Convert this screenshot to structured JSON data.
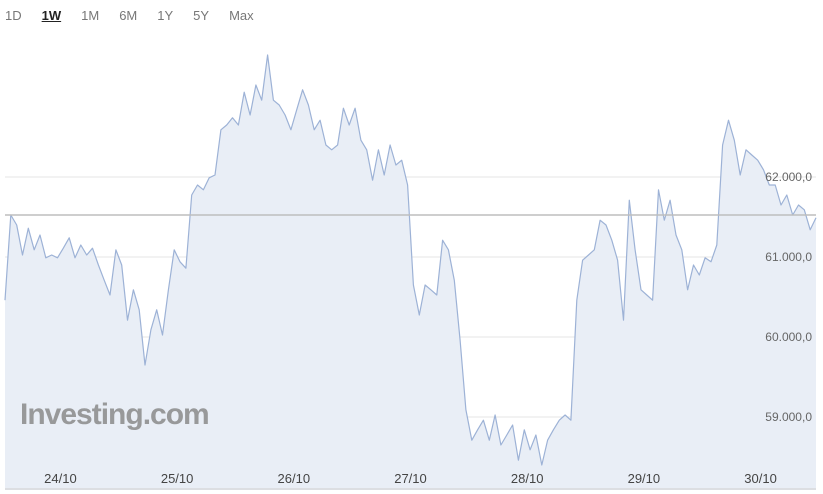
{
  "tabs": [
    "1D",
    "1W",
    "1M",
    "6M",
    "1Y",
    "5Y",
    "Max"
  ],
  "active_tab": 1,
  "chart_data": {
    "type": "area",
    "watermark": "Investing.com",
    "color": "#9db2d6",
    "fill": "#e9eef6",
    "grid": true,
    "reference_line": 61525,
    "xlim": [
      0,
      139
    ],
    "xticks": [
      {
        "value": 9.5,
        "label": "24/10"
      },
      {
        "value": 29.5,
        "label": "25/10"
      },
      {
        "value": 49.5,
        "label": "26/10"
      },
      {
        "value": 69.5,
        "label": "27/10"
      },
      {
        "value": 89.5,
        "label": "28/10"
      },
      {
        "value": 109.5,
        "label": "29/10"
      },
      {
        "value": 129.5,
        "label": "30/10"
      }
    ],
    "ylim": [
      58087.5,
      63712.5
    ],
    "yticks": [
      {
        "value": 59000,
        "label": "59.000,0"
      },
      {
        "value": 60000,
        "label": "60.000,0"
      },
      {
        "value": 61000,
        "label": "61.000,0"
      },
      {
        "value": 62000,
        "label": "62.000,0"
      }
    ],
    "values": [
      60460,
      61525,
      61400,
      61025,
      61360,
      61090,
      61275,
      60990,
      61025,
      60990,
      61110,
      61240,
      60990,
      61150,
      61025,
      61110,
      60900,
      60710,
      60525,
      61090,
      60900,
      60210,
      60590,
      60340,
      59650,
      60090,
      60340,
      60025,
      60590,
      61090,
      60940,
      60860,
      61775,
      61900,
      61840,
      61990,
      62025,
      62590,
      62650,
      62740,
      62650,
      63060,
      62775,
      63150,
      62960,
      63525,
      62960,
      62900,
      62775,
      62590,
      62840,
      63090,
      62900,
      62590,
      62710,
      62400,
      62340,
      62400,
      62860,
      62650,
      62860,
      62460,
      62340,
      61960,
      62340,
      62025,
      62400,
      62150,
      62210,
      61900,
      60650,
      60275,
      60650,
      60590,
      60525,
      61210,
      61090,
      60710,
      59960,
      59090,
      58710,
      58840,
      58960,
      58710,
      59025,
      58650,
      58775,
      58900,
      58460,
      58840,
      58590,
      58775,
      58400,
      58710,
      58840,
      58960,
      59025,
      58960,
      60460,
      60960,
      61025,
      61090,
      61460,
      61400,
      61210,
      60960,
      60210,
      61710,
      61090,
      60590,
      60525,
      60460,
      61840,
      61460,
      61710,
      61275,
      61090,
      60590,
      60900,
      60775,
      60990,
      60940,
      61150,
      62400,
      62710,
      62460,
      62025,
      62340,
      62275,
      62210,
      62090,
      61900,
      61900,
      61650,
      61775,
      61525,
      61650,
      61590,
      61340,
      61490
    ]
  }
}
